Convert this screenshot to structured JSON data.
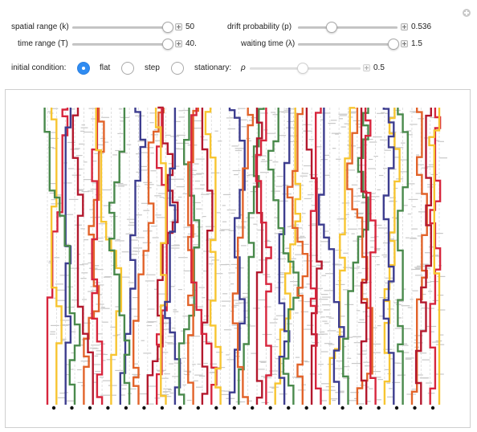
{
  "controls": {
    "spatial_range": {
      "label": "spatial range (k)",
      "value": "50",
      "fraction": 0.96
    },
    "time_range": {
      "label": "time range (T)",
      "value": "40.",
      "fraction": 0.96
    },
    "drift_probability": {
      "label": "drift probability (p)",
      "value": "0.536",
      "fraction": 0.34
    },
    "waiting_time": {
      "label": "waiting time (λ)",
      "value": "1.5",
      "fraction": 0.96
    },
    "initial_condition": {
      "label": "initial condition:",
      "options": [
        "flat",
        "step",
        "stationary:"
      ],
      "selected": "flat"
    },
    "rho": {
      "label": "ρ",
      "value": "0.5",
      "fraction": 0.48
    }
  },
  "colors": {
    "accent": "#2f8cf2",
    "paths": [
      "#d7263d",
      "#f7c531",
      "#3d3d8f",
      "#4a8a4c",
      "#e2632a",
      "#b3182d"
    ]
  },
  "icons": {
    "expand": "plus-circle-icon",
    "stepper": "plus-square-icon"
  }
}
